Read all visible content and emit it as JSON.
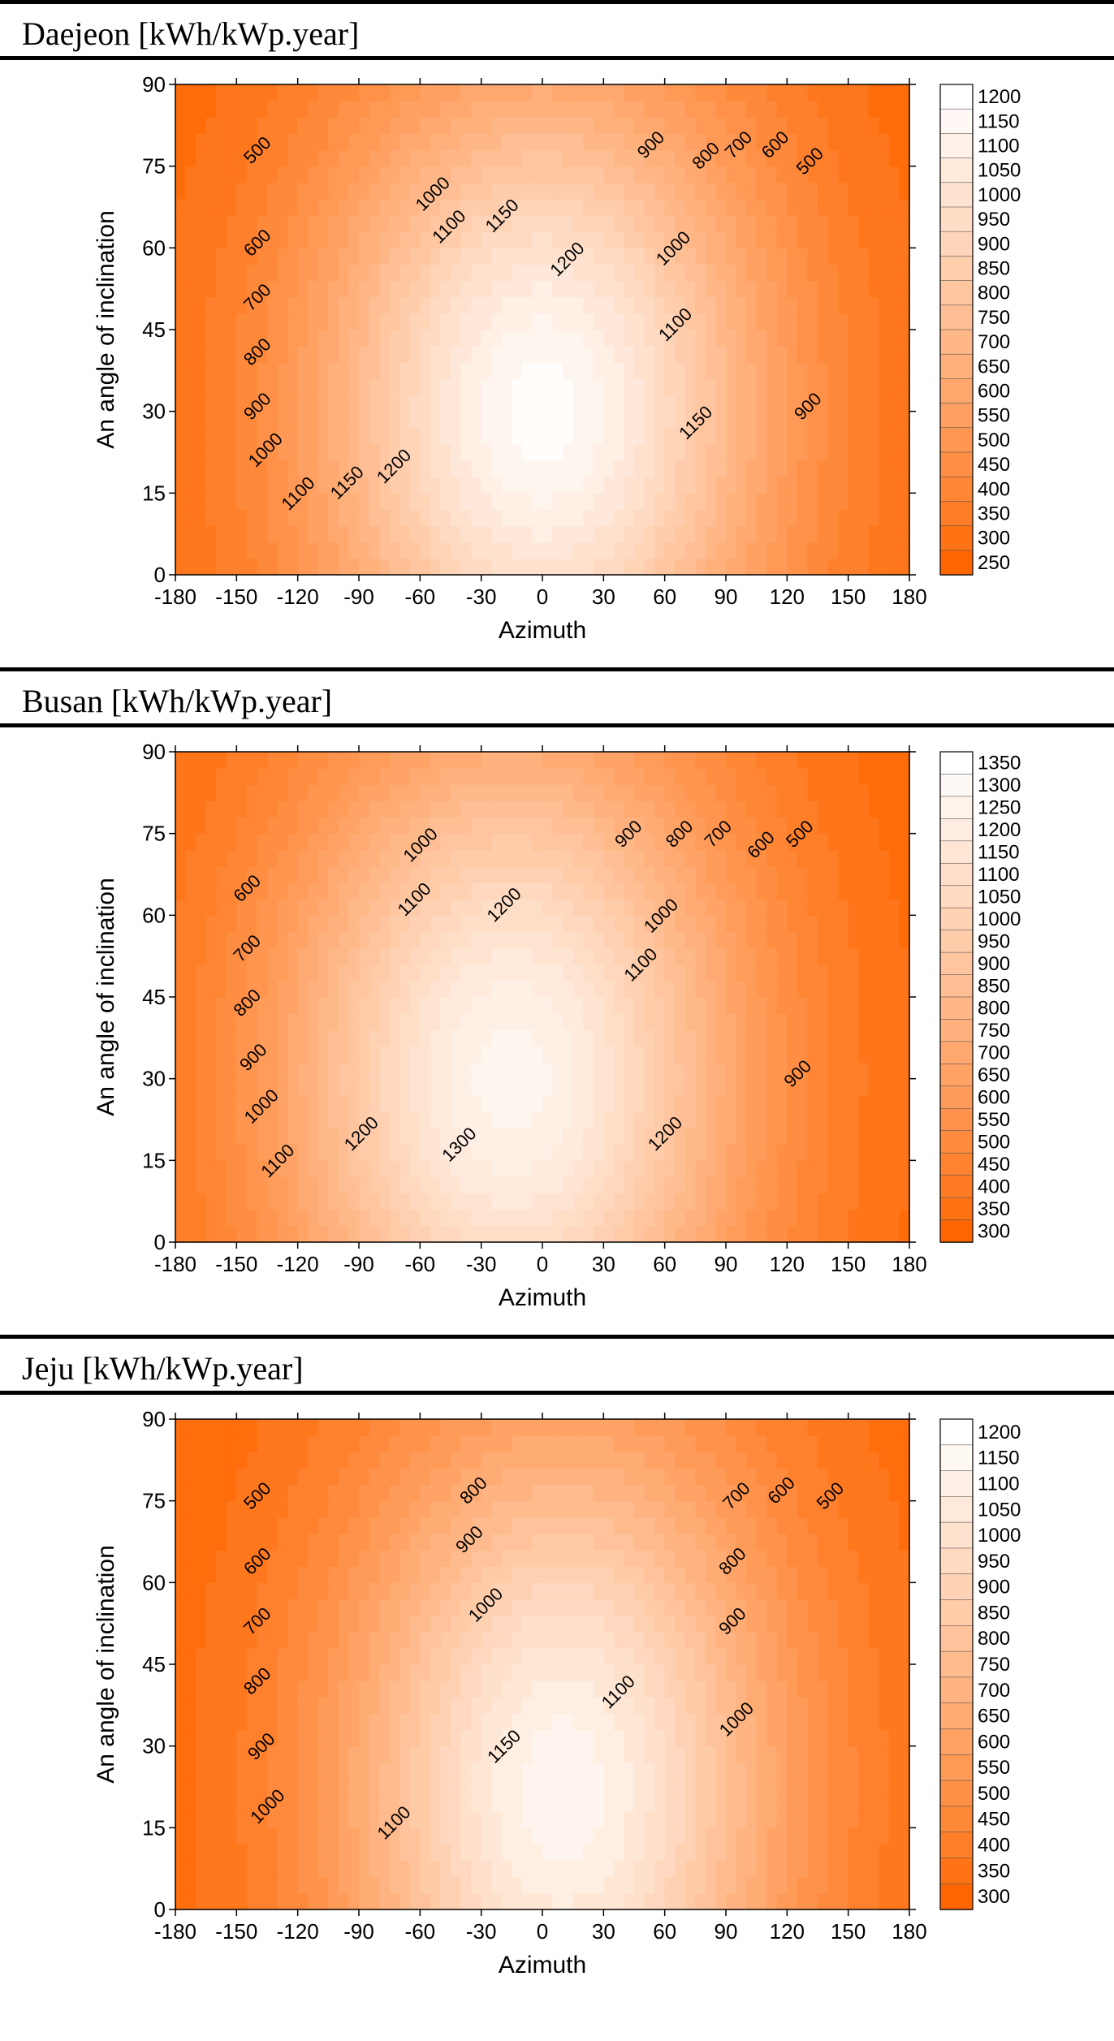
{
  "chart_data": [
    {
      "type": "contour",
      "city": "Daejeon",
      "title": "Daejeon  [kWh/kWp.year]",
      "xlabel": "Azimuth",
      "ylabel": "An angle of inclination",
      "xlim": [
        -180,
        180
      ],
      "ylim": [
        0,
        90
      ],
      "xticks": [
        "-180",
        "-150",
        "-120",
        "-90",
        "-60",
        "-30",
        "0",
        "30",
        "60",
        "90",
        "120",
        "150",
        "180"
      ],
      "yticks": [
        "0",
        "15",
        "30",
        "45",
        "60",
        "75",
        "90"
      ],
      "peak": {
        "azimuth": 0,
        "inclination": 30,
        "value": 1220
      },
      "min_value": 250,
      "sigma_x": 78,
      "sigma_y": 44,
      "legend_levels": [
        "1200",
        "1150",
        "1100",
        "1050",
        "1000",
        "950",
        "900",
        "850",
        "800",
        "750",
        "700",
        "650",
        "600",
        "550",
        "500",
        "450",
        "400",
        "350",
        "300",
        "250"
      ],
      "contour_labels": [
        {
          "text": "500",
          "az": -140,
          "inc": 78
        },
        {
          "text": "600",
          "az": -140,
          "inc": 61
        },
        {
          "text": "700",
          "az": -140,
          "inc": 51
        },
        {
          "text": "800",
          "az": -140,
          "inc": 41
        },
        {
          "text": "900",
          "az": -140,
          "inc": 31
        },
        {
          "text": "1000",
          "az": -136,
          "inc": 23
        },
        {
          "text": "1100",
          "az": -120,
          "inc": 15
        },
        {
          "text": "1150",
          "az": -96,
          "inc": 17
        },
        {
          "text": "1200",
          "az": -73,
          "inc": 20
        },
        {
          "text": "1000",
          "az": -54,
          "inc": 70
        },
        {
          "text": "1100",
          "az": -46,
          "inc": 64
        },
        {
          "text": "1150",
          "az": -20,
          "inc": 66
        },
        {
          "text": "1200",
          "az": 12,
          "inc": 58
        },
        {
          "text": "1000",
          "az": 64,
          "inc": 60
        },
        {
          "text": "1100",
          "az": 65,
          "inc": 46
        },
        {
          "text": "1150",
          "az": 75,
          "inc": 28
        },
        {
          "text": "900",
          "az": 53,
          "inc": 79
        },
        {
          "text": "800",
          "az": 80,
          "inc": 77
        },
        {
          "text": "700",
          "az": 96,
          "inc": 79
        },
        {
          "text": "600",
          "az": 114,
          "inc": 79
        },
        {
          "text": "500",
          "az": 131,
          "inc": 76
        },
        {
          "text": "900",
          "az": 130,
          "inc": 31
        }
      ]
    },
    {
      "type": "contour",
      "city": "Busan",
      "title": "Busan  [kWh/kWp.year]",
      "xlabel": "Azimuth",
      "ylabel": "An angle of inclination",
      "xlim": [
        -180,
        180
      ],
      "ylim": [
        0,
        90
      ],
      "xticks": [
        "-180",
        "-150",
        "-120",
        "-90",
        "-60",
        "-30",
        "0",
        "30",
        "60",
        "90",
        "120",
        "150",
        "180"
      ],
      "yticks": [
        "0",
        "15",
        "30",
        "45",
        "60",
        "75",
        "90"
      ],
      "peak": {
        "azimuth": -15,
        "inclination": 30,
        "value": 1325
      },
      "min_value": 300,
      "sigma_x": 80,
      "sigma_y": 46,
      "legend_levels": [
        "1350",
        "1300",
        "1250",
        "1200",
        "1150",
        "1100",
        "1050",
        "1000",
        "950",
        "900",
        "850",
        "800",
        "750",
        "700",
        "650",
        "600",
        "550",
        "500",
        "450",
        "400",
        "350",
        "300"
      ],
      "contour_labels": [
        {
          "text": "600",
          "az": -145,
          "inc": 65
        },
        {
          "text": "700",
          "az": -145,
          "inc": 54
        },
        {
          "text": "800",
          "az": -145,
          "inc": 44
        },
        {
          "text": "900",
          "az": -142,
          "inc": 34
        },
        {
          "text": "1000",
          "az": -138,
          "inc": 25
        },
        {
          "text": "1100",
          "az": -130,
          "inc": 15
        },
        {
          "text": "1200",
          "az": -89,
          "inc": 20
        },
        {
          "text": "1000",
          "az": -60,
          "inc": 73
        },
        {
          "text": "1100",
          "az": -63,
          "inc": 63
        },
        {
          "text": "1200",
          "az": -19,
          "inc": 62
        },
        {
          "text": "1300",
          "az": -41,
          "inc": 18
        },
        {
          "text": "900",
          "az": 42,
          "inc": 75
        },
        {
          "text": "800",
          "az": 67,
          "inc": 75
        },
        {
          "text": "700",
          "az": 86,
          "inc": 75
        },
        {
          "text": "600",
          "az": 107,
          "inc": 73
        },
        {
          "text": "500",
          "az": 126,
          "inc": 75
        },
        {
          "text": "1000",
          "az": 58,
          "inc": 60
        },
        {
          "text": "1100",
          "az": 48,
          "inc": 51
        },
        {
          "text": "1200",
          "az": 60,
          "inc": 20
        },
        {
          "text": "900",
          "az": 125,
          "inc": 31
        }
      ]
    },
    {
      "type": "contour",
      "city": "Jeju",
      "title": "Jeju  [kWh/kWp.year]",
      "xlabel": "Azimuth",
      "ylabel": "An angle of inclination",
      "xlim": [
        -180,
        180
      ],
      "ylim": [
        0,
        90
      ],
      "xticks": [
        "-180",
        "-150",
        "-120",
        "-90",
        "-60",
        "-30",
        "0",
        "30",
        "60",
        "90",
        "120",
        "150",
        "180"
      ],
      "yticks": [
        "0",
        "15",
        "30",
        "45",
        "60",
        "75",
        "90"
      ],
      "peak": {
        "azimuth": 10,
        "inclination": 22,
        "value": 1180
      },
      "min_value": 300,
      "sigma_x": 76,
      "sigma_y": 48,
      "legend_levels": [
        "1200",
        "1150",
        "1100",
        "1050",
        "1000",
        "950",
        "900",
        "850",
        "800",
        "750",
        "700",
        "650",
        "600",
        "550",
        "500",
        "450",
        "400",
        "350",
        "300"
      ],
      "contour_labels": [
        {
          "text": "500",
          "az": -140,
          "inc": 76
        },
        {
          "text": "600",
          "az": -140,
          "inc": 64
        },
        {
          "text": "700",
          "az": -140,
          "inc": 53
        },
        {
          "text": "800",
          "az": -140,
          "inc": 42
        },
        {
          "text": "900",
          "az": -138,
          "inc": 30
        },
        {
          "text": "1000",
          "az": -135,
          "inc": 19
        },
        {
          "text": "1100",
          "az": -73,
          "inc": 16
        },
        {
          "text": "1150",
          "az": -19,
          "inc": 30
        },
        {
          "text": "800",
          "az": -34,
          "inc": 77
        },
        {
          "text": "900",
          "az": -36,
          "inc": 68
        },
        {
          "text": "1000",
          "az": -28,
          "inc": 56
        },
        {
          "text": "1100",
          "az": 37,
          "inc": 40
        },
        {
          "text": "700",
          "az": 95,
          "inc": 76
        },
        {
          "text": "600",
          "az": 117,
          "inc": 77
        },
        {
          "text": "500",
          "az": 141,
          "inc": 76
        },
        {
          "text": "800",
          "az": 93,
          "inc": 64
        },
        {
          "text": "900",
          "az": 93,
          "inc": 53
        },
        {
          "text": "1000",
          "az": 95,
          "inc": 35
        }
      ]
    }
  ]
}
